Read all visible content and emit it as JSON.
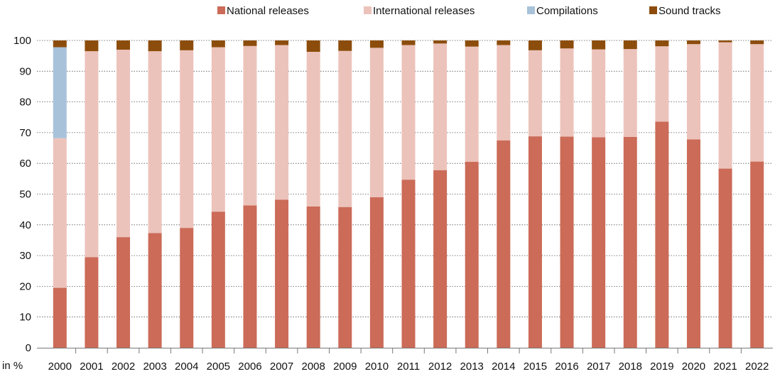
{
  "chart_data": {
    "type": "bar",
    "stacked": true,
    "categories": [
      "2000",
      "2001",
      "2002",
      "2003",
      "2004",
      "2005",
      "2006",
      "2007",
      "2008",
      "2009",
      "2010",
      "2011",
      "2012",
      "2013",
      "2014",
      "2015",
      "2016",
      "2017",
      "2018",
      "2019",
      "2020",
      "2021",
      "2022"
    ],
    "series": [
      {
        "name": "National releases",
        "color": "#cb6b58",
        "values": [
          19.5,
          29.5,
          36,
          37.3,
          39,
          44.3,
          46.3,
          48.2,
          46,
          45.8,
          49,
          54.7,
          57.8,
          60.5,
          67.5,
          68.8,
          68.7,
          68.5,
          68.6,
          73.6,
          67.8,
          58.3,
          60.6
        ]
      },
      {
        "name": "International releases",
        "color": "#ecc3bb",
        "values": [
          48.7,
          67,
          61,
          59.2,
          57.8,
          53.5,
          51.9,
          50.3,
          50.3,
          50.8,
          48.6,
          43.8,
          41.2,
          37.5,
          31,
          28,
          28.7,
          28.6,
          28.6,
          24.5,
          31,
          41.1,
          38.2
        ]
      },
      {
        "name": "Compilations",
        "color": "#a8c2da",
        "values": [
          29.6,
          0,
          0,
          0,
          0,
          0,
          0,
          0,
          0,
          0,
          0,
          0,
          0,
          0,
          0,
          0,
          0,
          0,
          0,
          0,
          0,
          0,
          0
        ]
      },
      {
        "name": "Sound tracks",
        "color": "#8c4d0c",
        "values": [
          2.2,
          3.5,
          3,
          3.5,
          3.2,
          2.2,
          1.8,
          1.5,
          3.7,
          3.4,
          2.4,
          1.5,
          1,
          2,
          1.5,
          3.2,
          2.6,
          2.9,
          2.8,
          1.9,
          1.2,
          0.6,
          1.2
        ]
      }
    ],
    "ylim": [
      0,
      100
    ],
    "yticks": [
      "0",
      "10",
      "20",
      "30",
      "40",
      "50",
      "60",
      "70",
      "80",
      "90",
      "100"
    ],
    "ylabel": "in %",
    "grid": true,
    "legend_position": "top"
  }
}
